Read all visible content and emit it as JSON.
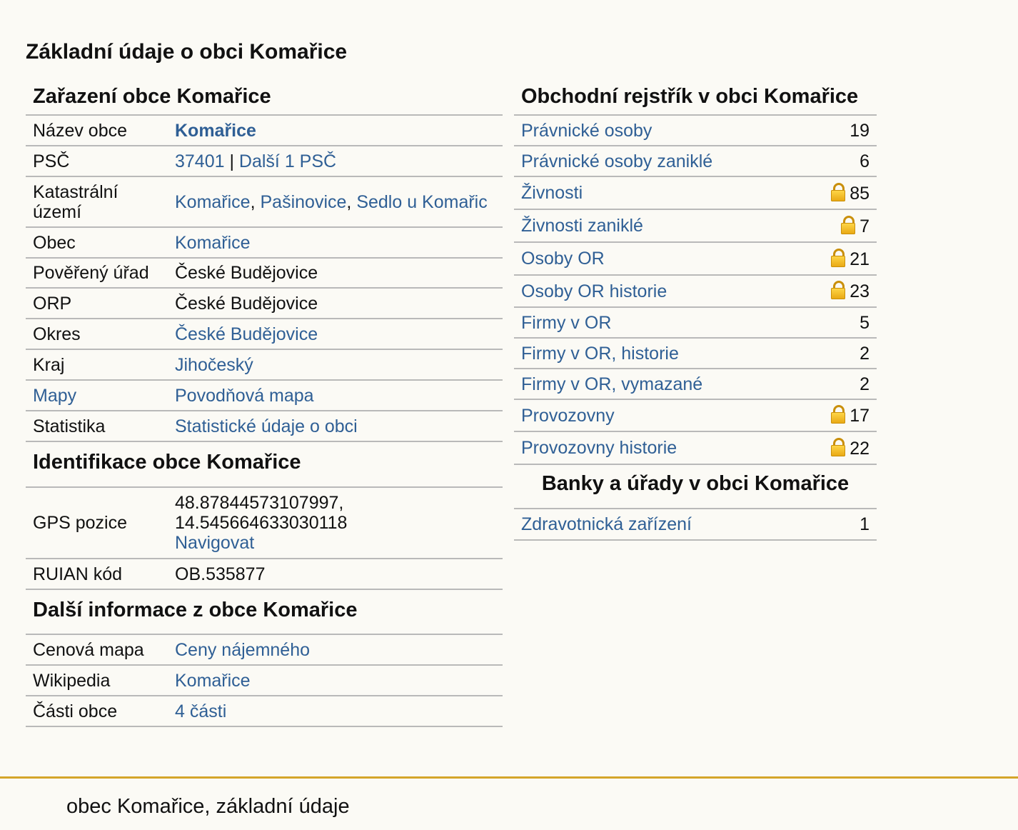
{
  "page_title": "Základní údaje o obci Komařice",
  "zarazeni": {
    "title": "Zařazení obce Komařice",
    "nazev_label": "Název obce",
    "nazev_value": "Komařice",
    "psc_label": "PSČ",
    "psc_link": "37401",
    "psc_sep": " | ",
    "psc_more": "Další 1 PSČ",
    "katastr_label": "Katastrální území",
    "katastr_1": "Komařice",
    "katastr_sep1": ", ",
    "katastr_2": "Pašinovice",
    "katastr_sep2": ", ",
    "katastr_3": "Sedlo u Komařic",
    "obec_label": "Obec",
    "obec_value": "Komařice",
    "povereny_label": "Pověřený úřad",
    "povereny_value": "České Budějovice",
    "orp_label": "ORP",
    "orp_value": "České Budějovice",
    "okres_label": "Okres",
    "okres_value": "České Budějovice",
    "kraj_label": "Kraj",
    "kraj_value": "Jihočeský",
    "mapy_label": "Mapy",
    "mapy_value": "Povodňová mapa",
    "statistika_label": "Statistika",
    "statistika_value": "Statistické údaje o obci"
  },
  "identifikace": {
    "title": "Identifikace obce Komařice",
    "gps_label": "GPS pozice",
    "gps_lat": "48.87844573107997,",
    "gps_lon": "14.545664633030118",
    "gps_nav": "Navigovat",
    "ruian_label": "RUIAN kód",
    "ruian_value": "OB.535877"
  },
  "dalsi": {
    "title": "Další informace z obce Komařice",
    "cenova_label": "Cenová mapa",
    "cenova_value": "Ceny nájemného",
    "wiki_label": "Wikipedia",
    "wiki_value": "Komařice",
    "casti_label": "Části obce",
    "casti_value": "4 části"
  },
  "obchodni": {
    "title": "Obchodní rejstřík v obci Komařice",
    "rows": [
      {
        "label": "Právnické osoby",
        "count": "19",
        "locked": false
      },
      {
        "label": "Právnické osoby zaniklé",
        "count": "6",
        "locked": false
      },
      {
        "label": "Živnosti",
        "count": "85",
        "locked": true
      },
      {
        "label": "Živnosti zaniklé",
        "count": "7",
        "locked": true
      },
      {
        "label": "Osoby OR",
        "count": "21",
        "locked": true
      },
      {
        "label": "Osoby OR historie",
        "count": "23",
        "locked": true
      },
      {
        "label": "Firmy v OR",
        "count": "5",
        "locked": false
      },
      {
        "label": "Firmy v OR, historie",
        "count": "2",
        "locked": false
      },
      {
        "label": "Firmy v OR, vymazané",
        "count": "2",
        "locked": false
      },
      {
        "label": "Provozovny",
        "count": "17",
        "locked": true
      },
      {
        "label": "Provozovny historie",
        "count": "22",
        "locked": true
      }
    ]
  },
  "banky": {
    "title": "Banky a úřady v obci Komařice",
    "rows": [
      {
        "label": "Zdravotnická zařízení",
        "count": "1",
        "locked": false
      }
    ]
  },
  "footer": {
    "text": "obec Komařice, základní údaje"
  },
  "colors": {
    "link": "#2f5f95",
    "footer_rule": "#d4a52a",
    "lock": "#e8a611"
  }
}
